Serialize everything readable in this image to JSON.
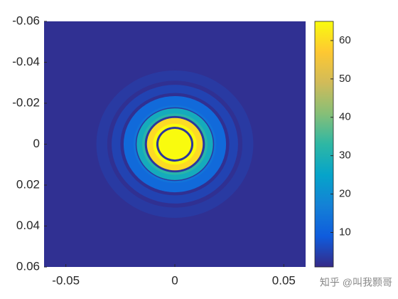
{
  "chart_data": {
    "type": "radial-heatmap",
    "xlim": [
      -0.06,
      0.06
    ],
    "ylim": [
      -0.06,
      0.06
    ],
    "y_reversed": true,
    "xticks": [
      -0.05,
      0,
      0.05
    ],
    "yticks": [
      -0.06,
      -0.04,
      -0.02,
      0,
      0.02,
      0.04,
      0.06
    ],
    "background": 2,
    "r": [
      0.036,
      0.031,
      0.029,
      0.025,
      0.0235,
      0.019,
      0.018,
      0.0175,
      0.015,
      0.0138,
      0.0128,
      0.01,
      0.0085,
      0.0075
    ],
    "values": [
      3.5,
      2,
      5,
      2,
      12,
      14,
      3,
      28,
      32,
      3,
      60,
      65,
      3,
      65
    ],
    "clim": [
      1,
      65
    ],
    "cticks": [
      10,
      20,
      30,
      40,
      50,
      60
    ],
    "colormap": [
      "#352a87",
      "#0f5cdd",
      "#1481d6",
      "#06a4ca",
      "#2eb7a4",
      "#87bf77",
      "#d1bb59",
      "#fec832",
      "#f9fb0e"
    ],
    "watermark": "知乎 @叫我颢哥"
  }
}
